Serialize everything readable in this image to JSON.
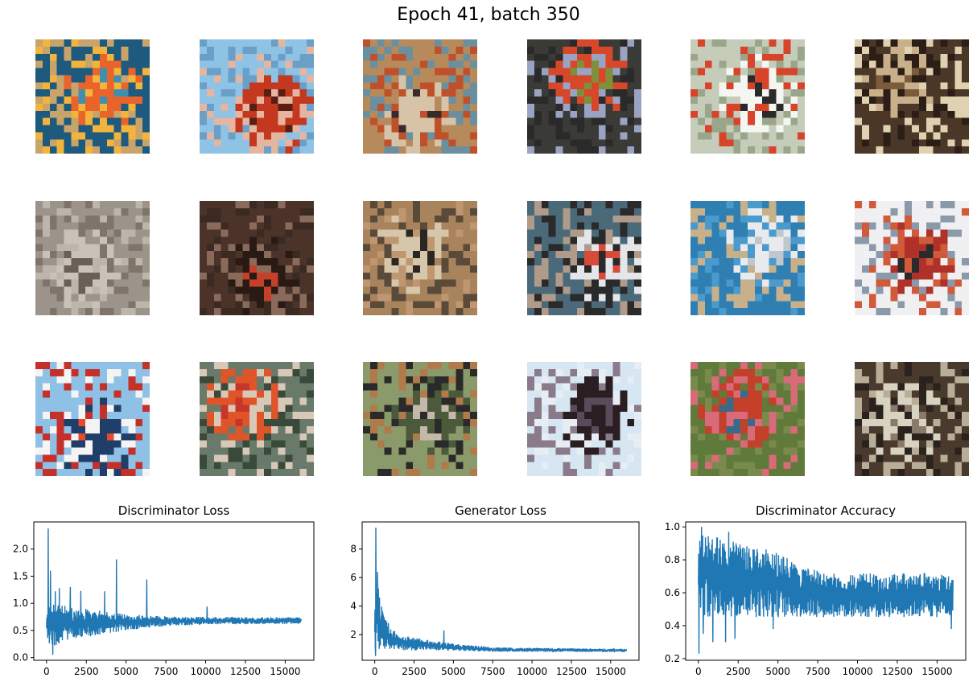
{
  "figure_title": "Epoch 41, batch 350",
  "colors": {
    "series": "#1f77b4",
    "axes": "#000000"
  },
  "image_grid": {
    "rows": 3,
    "cols": 6,
    "tiles": [
      {
        "colors": [
          "#1d5a7e",
          "#e8642a",
          "#3f8fb0",
          "#f2b43c",
          "#c8a36a"
        ]
      },
      {
        "colors": [
          "#8fc3e6",
          "#c4381f",
          "#5a1f14",
          "#e6b5a0",
          "#6aa0c8"
        ]
      },
      {
        "colors": [
          "#b78a5c",
          "#d6c3a8",
          "#3a2a2a",
          "#c0502a",
          "#6a8f9f"
        ]
      },
      {
        "colors": [
          "#3a3a36",
          "#d7482a",
          "#7f8f3a",
          "#9aa3c2",
          "#2a2a2a"
        ]
      },
      {
        "colors": [
          "#c5ccba",
          "#f4f6f2",
          "#2a2a2a",
          "#d7442a",
          "#9aa68a"
        ]
      },
      {
        "colors": [
          "#4a3728",
          "#c9b08a",
          "#7a5c3a",
          "#2a1e16",
          "#e0d2b0"
        ]
      },
      {
        "colors": [
          "#9c938a",
          "#c9c2b8",
          "#6a5f56",
          "#bdb5aa",
          "#7e746a"
        ]
      },
      {
        "colors": [
          "#4c332a",
          "#2a1a14",
          "#c4402a",
          "#8a6a5a",
          "#3a2a22"
        ]
      },
      {
        "colors": [
          "#a8835c",
          "#d6c6aa",
          "#2a2622",
          "#c09670",
          "#5a4a3a"
        ]
      },
      {
        "colors": [
          "#4a6a7a",
          "#e4e6ea",
          "#d84a3a",
          "#2a2a2a",
          "#b09a8a"
        ]
      },
      {
        "colors": [
          "#2f7fb3",
          "#e8eaee",
          "#bfc6cc",
          "#4a9acd",
          "#c7b08a"
        ]
      },
      {
        "colors": [
          "#f0f0f2",
          "#b0302a",
          "#2a2a2a",
          "#d05a3a",
          "#8a9aaa"
        ]
      },
      {
        "colors": [
          "#8fc0e6",
          "#1f3f6a",
          "#e84a2a",
          "#f4f4f4",
          "#c4302a"
        ]
      },
      {
        "colors": [
          "#6a7a6a",
          "#e0542a",
          "#c8362a",
          "#d8c8b8",
          "#3a4a3a"
        ]
      },
      {
        "colors": [
          "#8a9a6a",
          "#4a5a3a",
          "#c4b8a8",
          "#2a2a2a",
          "#b07a4a"
        ]
      },
      {
        "colors": [
          "#d6e6f2",
          "#2a1e22",
          "#5a4a5a",
          "#e6eef4",
          "#8a7a8a"
        ]
      },
      {
        "colors": [
          "#5f7a3a",
          "#c4402a",
          "#3a6a8a",
          "#d86a7a",
          "#7a8a4a"
        ]
      },
      {
        "colors": [
          "#4a3a2e",
          "#d8d2c0",
          "#8a7a6a",
          "#2a221c",
          "#b8ae98"
        ]
      }
    ]
  },
  "chart_data": [
    {
      "type": "line",
      "title": "Discriminator Loss",
      "xlim": [
        -800,
        16800
      ],
      "ylim": [
        -0.05,
        2.5
      ],
      "xticks": [
        0,
        2500,
        5000,
        7500,
        10000,
        12500,
        15000
      ],
      "xtick_labels": [
        "0",
        "2500",
        "5000",
        "7500",
        "10000",
        "12500",
        "15000"
      ],
      "yticks": [
        0.0,
        0.5,
        1.0,
        1.5,
        2.0
      ],
      "ytick_labels": [
        "0.0",
        "0.5",
        "1.0",
        "1.5",
        "2.0"
      ],
      "series": [
        {
          "x_max": 16000,
          "envelope": [
            {
              "x": 0,
              "low": 0.3,
              "high": 0.9
            },
            {
              "x": 500,
              "low": 0.2,
              "high": 1.0
            },
            {
              "x": 1500,
              "low": 0.35,
              "high": 0.95
            },
            {
              "x": 3000,
              "low": 0.4,
              "high": 0.88
            },
            {
              "x": 5000,
              "low": 0.5,
              "high": 0.8
            },
            {
              "x": 7500,
              "low": 0.58,
              "high": 0.76
            },
            {
              "x": 10000,
              "low": 0.61,
              "high": 0.75
            },
            {
              "x": 16000,
              "low": 0.62,
              "high": 0.74
            }
          ],
          "spikes": [
            {
              "x": 100,
              "y": 2.38
            },
            {
              "x": 250,
              "y": 1.6
            },
            {
              "x": 400,
              "y": 0.05
            },
            {
              "x": 550,
              "y": 1.22
            },
            {
              "x": 800,
              "y": 1.28
            },
            {
              "x": 1500,
              "y": 1.3
            },
            {
              "x": 2150,
              "y": 1.23
            },
            {
              "x": 3650,
              "y": 1.22
            },
            {
              "x": 4400,
              "y": 1.81
            },
            {
              "x": 6300,
              "y": 1.44
            },
            {
              "x": 10100,
              "y": 0.94
            }
          ]
        }
      ]
    },
    {
      "type": "line",
      "title": "Generator Loss",
      "xlim": [
        -800,
        16800
      ],
      "ylim": [
        0.2,
        9.9
      ],
      "xticks": [
        0,
        2500,
        5000,
        7500,
        10000,
        12500,
        15000
      ],
      "xtick_labels": [
        "0",
        "2500",
        "5000",
        "7500",
        "10000",
        "12500",
        "15000"
      ],
      "yticks": [
        2,
        4,
        6,
        8
      ],
      "ytick_labels": [
        "2",
        "4",
        "6",
        "8"
      ],
      "series": [
        {
          "x_max": 16000,
          "envelope": [
            {
              "x": 0,
              "low": 0.8,
              "high": 4.0
            },
            {
              "x": 200,
              "low": 1.0,
              "high": 5.5
            },
            {
              "x": 600,
              "low": 1.0,
              "high": 3.2
            },
            {
              "x": 1500,
              "low": 0.9,
              "high": 2.0
            },
            {
              "x": 3000,
              "low": 0.9,
              "high": 1.7
            },
            {
              "x": 5000,
              "low": 0.85,
              "high": 1.4
            },
            {
              "x": 7500,
              "low": 0.8,
              "high": 1.1
            },
            {
              "x": 16000,
              "low": 0.78,
              "high": 1.0
            }
          ],
          "spikes": [
            {
              "x": 80,
              "y": 9.5
            },
            {
              "x": 180,
              "y": 6.4
            },
            {
              "x": 300,
              "y": 4.6
            },
            {
              "x": 600,
              "y": 3.0
            },
            {
              "x": 4400,
              "y": 2.3
            },
            {
              "x": 60,
              "y": 0.5
            }
          ]
        }
      ]
    },
    {
      "type": "line",
      "title": "Discriminator Accuracy",
      "xlim": [
        -800,
        16800
      ],
      "ylim": [
        0.19,
        1.03
      ],
      "xticks": [
        0,
        2500,
        5000,
        7500,
        10000,
        12500,
        15000
      ],
      "xtick_labels": [
        "0",
        "2500",
        "5000",
        "7500",
        "10000",
        "12500",
        "15000"
      ],
      "yticks": [
        0.2,
        0.4,
        0.6,
        0.8,
        1.0
      ],
      "ytick_labels": [
        "0.2",
        "0.4",
        "0.6",
        "0.8",
        "1.0"
      ],
      "series": [
        {
          "x_max": 16000,
          "envelope": [
            {
              "x": 0,
              "low": 0.45,
              "high": 1.0
            },
            {
              "x": 1000,
              "low": 0.45,
              "high": 0.95
            },
            {
              "x": 2500,
              "low": 0.45,
              "high": 0.9
            },
            {
              "x": 5000,
              "low": 0.45,
              "high": 0.85
            },
            {
              "x": 6000,
              "low": 0.45,
              "high": 0.78
            },
            {
              "x": 8000,
              "low": 0.45,
              "high": 0.72
            },
            {
              "x": 16000,
              "low": 0.45,
              "high": 0.72
            }
          ],
          "spikes": [
            {
              "x": 30,
              "y": 0.23
            },
            {
              "x": 300,
              "y": 0.35
            },
            {
              "x": 900,
              "y": 0.3
            },
            {
              "x": 1700,
              "y": 0.3
            },
            {
              "x": 2300,
              "y": 0.32
            },
            {
              "x": 4700,
              "y": 0.38
            },
            {
              "x": 15900,
              "y": 0.38
            },
            {
              "x": 200,
              "y": 1.0
            },
            {
              "x": 1900,
              "y": 0.97
            }
          ]
        }
      ]
    }
  ]
}
